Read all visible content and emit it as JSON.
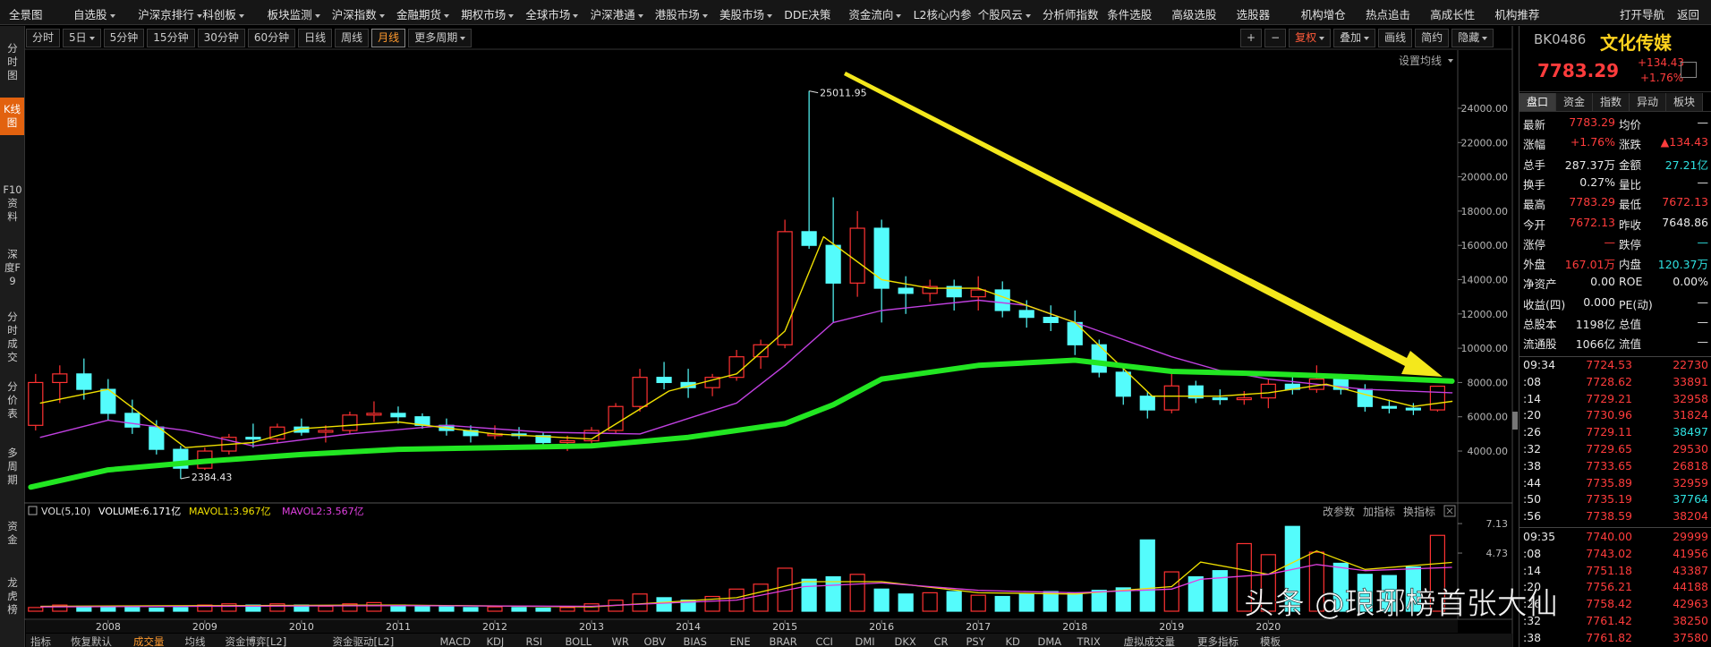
{
  "menu": [
    "全景图",
    "自选股",
    "沪深京排行",
    "科创板",
    "板块监测",
    "沪深指数",
    "金融期货",
    "期权市场",
    "全球市场",
    "沪深港通",
    "港股市场",
    "美股市场",
    "DDE决策",
    "资金流向",
    "L2核心内参",
    "个股风云",
    "分析师指数",
    "条件选股",
    "高级选股",
    "选股器",
    "机构增仓",
    "热点追击",
    "高成长性",
    "机构推荐"
  ],
  "menu_right": [
    "打开导航",
    "返回"
  ],
  "toolbar": [
    "分时",
    "5日",
    "5分钟",
    "15分钟",
    "30分钟",
    "60分钟",
    "日线",
    "周线",
    "月线",
    "更多周期"
  ],
  "toolbar_right": [
    "+",
    "−",
    "复权",
    "叠加",
    "画线",
    "简约",
    "隐藏"
  ],
  "sidebar": [
    "分时图",
    "K线图",
    "F10资料",
    "深度F9",
    "分时成交",
    "分价表",
    "多周期",
    "资金",
    "龙虎榜"
  ],
  "chart_data": [
    {
      "type": "candlestick",
      "x": [
        2007.25,
        2007.5,
        2007.75,
        2008.0,
        2008.25,
        2008.5,
        2008.75,
        2009.0,
        2009.25,
        2009.5,
        2009.75,
        2010.0,
        2010.25,
        2010.5,
        2010.75,
        2011.0,
        2011.25,
        2011.5,
        2011.75,
        2012.0,
        2012.25,
        2012.5,
        2012.75,
        2013.0,
        2013.25,
        2013.5,
        2013.75,
        2014.0,
        2014.25,
        2014.5,
        2014.75,
        2015.0,
        2015.25,
        2015.5,
        2015.75,
        2016.0,
        2016.25,
        2016.5,
        2016.75,
        2017.0,
        2017.25,
        2017.5,
        2017.75,
        2018.0,
        2018.25,
        2018.5,
        2018.75,
        2019.0,
        2019.25,
        2019.5,
        2019.75,
        2020.0,
        2020.25,
        2020.5,
        2020.75,
        2021.0,
        2021.25,
        2021.5,
        2021.75
      ],
      "open": [
        5500,
        8000,
        8500,
        7600,
        6200,
        5400,
        4100,
        3000,
        4000,
        4800,
        4700,
        5400,
        5100,
        5200,
        6100,
        6200,
        6000,
        5500,
        5200,
        4900,
        5000,
        4900,
        4500,
        4600,
        5200,
        6600,
        8300,
        8000,
        7700,
        8300,
        9500,
        10200,
        16800,
        16000,
        13800,
        17000,
        13500,
        13200,
        13600,
        13000,
        13400,
        12200,
        11800,
        11500,
        10200,
        8600,
        7200,
        6400,
        7800,
        7100,
        7000,
        7100,
        7900,
        7600,
        8200,
        7600,
        6600,
        6500,
        6400
      ],
      "high": [
        8500,
        9000,
        9400,
        8200,
        7000,
        5800,
        4300,
        4200,
        5000,
        5600,
        5600,
        5900,
        5500,
        6300,
        6900,
        6600,
        6200,
        5900,
        5500,
        5500,
        5400,
        5100,
        4900,
        5400,
        6800,
        8800,
        9200,
        8800,
        8500,
        9900,
        10500,
        17500,
        25011.95,
        18800,
        18000,
        17500,
        14200,
        14000,
        14000,
        14200,
        13900,
        12800,
        12500,
        12200,
        10500,
        8900,
        7500,
        8700,
        8100,
        7600,
        7500,
        8200,
        8500,
        9000,
        8500,
        7900,
        7000,
        6800,
        7783.29
      ],
      "low": [
        5200,
        6800,
        7000,
        5800,
        5000,
        3800,
        2384.43,
        2900,
        3800,
        4200,
        4500,
        4900,
        4500,
        5000,
        5700,
        5600,
        5300,
        4900,
        4500,
        4700,
        4700,
        4300,
        4000,
        4400,
        5000,
        6300,
        7600,
        7100,
        7200,
        8100,
        8800,
        10000,
        15800,
        11500,
        13000,
        11500,
        12000,
        12700,
        12200,
        12200,
        11800,
        11200,
        11000,
        9600,
        8300,
        6700,
        5900,
        6200,
        6800,
        6700,
        6700,
        6500,
        7300,
        7400,
        7300,
        6300,
        6200,
        6100,
        6300
      ],
      "close": [
        8000,
        8500,
        7600,
        6200,
        5400,
        4100,
        3000,
        4000,
        4800,
        4700,
        5400,
        5100,
        5200,
        6100,
        6200,
        6000,
        5500,
        5200,
        4900,
        5000,
        4900,
        4500,
        4600,
        5200,
        6600,
        8300,
        8000,
        7700,
        8300,
        9500,
        10200,
        16800,
        16000,
        13800,
        17000,
        13500,
        13200,
        13600,
        13000,
        13400,
        12200,
        11800,
        11500,
        10200,
        8600,
        7200,
        6400,
        7800,
        7100,
        7000,
        7100,
        7900,
        7600,
        8200,
        7600,
        6600,
        6500,
        6400,
        7783.29
      ],
      "up_color": "#ff3232",
      "down_color": "#54fcfc",
      "xlim": [
        2007.15,
        2021.95
      ],
      "xticks": [
        2008,
        2009,
        2010,
        2011,
        2012,
        2013,
        2014,
        2015,
        2016,
        2017,
        2018,
        2019,
        2020
      ],
      "ylim": [
        1000,
        27000
      ],
      "yticks": [
        {
          "value": 4000,
          "label": "4000.00"
        },
        {
          "value": 6000,
          "label": "6000.00"
        },
        {
          "value": 8000,
          "label": "8000.00"
        },
        {
          "value": 10000,
          "label": "10000.00"
        },
        {
          "value": 12000,
          "label": "12000.00"
        },
        {
          "value": 14000,
          "label": "14000.00"
        },
        {
          "value": 16000,
          "label": "16000.00"
        },
        {
          "value": 18000,
          "label": "18000.00"
        },
        {
          "value": 20000,
          "label": "20000.00"
        },
        {
          "value": 22000,
          "label": "22000.00"
        },
        {
          "value": 24000,
          "label": "24000.00"
        }
      ],
      "ma_setting": "设置均线",
      "ma_lines": [
        {
          "color": "#c040e0",
          "width": 1.4,
          "x": [
            2007.3,
            2008,
            2008.8,
            2009.5,
            2010.5,
            2011.5,
            2012.5,
            2013.5,
            2014.5,
            2015,
            2015.5,
            2016,
            2016.5,
            2017,
            2017.5,
            2018,
            2018.5,
            2019,
            2019.5,
            2020,
            2021,
            2021.9
          ],
          "values": [
            4800,
            5800,
            5200,
            4300,
            5000,
            5500,
            5100,
            5000,
            6800,
            9000,
            11500,
            12200,
            12500,
            12800,
            12500,
            11500,
            10500,
            9500,
            8700,
            8200,
            7600,
            7400
          ]
        },
        {
          "color": "#f0e000",
          "width": 1.4,
          "x": [
            2007.3,
            2008,
            2008.8,
            2009.5,
            2010,
            2011,
            2012,
            2013,
            2013.8,
            2014.5,
            2015,
            2015.4,
            2016,
            2016.5,
            2017,
            2018,
            2018.8,
            2019.5,
            2020,
            2020.6,
            2021,
            2021.5,
            2021.9
          ],
          "values": [
            6800,
            7600,
            4200,
            4500,
            5300,
            5700,
            5000,
            4700,
            7500,
            8500,
            11000,
            16500,
            14000,
            13500,
            13500,
            11500,
            7200,
            7200,
            7400,
            7900,
            7300,
            6600,
            6900
          ]
        },
        {
          "color": "#22e622",
          "width": 6,
          "x": [
            2007.2,
            2008,
            2009,
            2010,
            2011,
            2012,
            2013,
            2014,
            2015,
            2015.5,
            2016,
            2017,
            2018,
            2019,
            2020,
            2021,
            2021.9
          ],
          "values": [
            1900,
            2900,
            3400,
            3800,
            4100,
            4200,
            4300,
            4800,
            5600,
            6700,
            8200,
            9000,
            9300,
            8650,
            8500,
            8300,
            8080
          ]
        }
      ]
    },
    {
      "type": "bar",
      "title": "VOL(5,10)",
      "legend": [
        "VOLUME:6.171亿",
        "MAVOL1:3.967亿",
        "MAVOL2:3.567亿"
      ],
      "tools": [
        "改参数",
        "加指标",
        "换指标"
      ],
      "x": [
        2007.25,
        2007.5,
        2007.75,
        2008.0,
        2008.25,
        2008.5,
        2008.75,
        2009.0,
        2009.25,
        2009.5,
        2009.75,
        2010.0,
        2010.25,
        2010.5,
        2010.75,
        2011.0,
        2011.25,
        2011.5,
        2011.75,
        2012.0,
        2012.25,
        2012.5,
        2012.75,
        2013.0,
        2013.25,
        2013.5,
        2013.75,
        2014.0,
        2014.25,
        2014.5,
        2014.75,
        2015.0,
        2015.25,
        2015.5,
        2015.75,
        2016.0,
        2016.25,
        2016.5,
        2016.75,
        2017.0,
        2017.25,
        2017.5,
        2017.75,
        2018.0,
        2018.25,
        2018.5,
        2018.75,
        2019.0,
        2019.25,
        2019.5,
        2019.75,
        2020.0,
        2020.25,
        2020.5,
        2020.75,
        2021.0,
        2021.25,
        2021.5,
        2021.75
      ],
      "values": [
        0.3,
        0.5,
        0.4,
        0.3,
        0.3,
        0.25,
        0.3,
        0.5,
        0.6,
        0.5,
        0.6,
        0.5,
        0.4,
        0.6,
        0.7,
        0.5,
        0.4,
        0.35,
        0.3,
        0.35,
        0.3,
        0.25,
        0.3,
        0.6,
        0.9,
        1.4,
        1.1,
        0.9,
        1.2,
        1.8,
        2.2,
        3.5,
        2.6,
        2.8,
        3.0,
        1.8,
        1.4,
        1.5,
        1.6,
        1.3,
        1.2,
        1.4,
        1.6,
        1.5,
        1.7,
        1.9,
        5.8,
        3.2,
        2.8,
        3.3,
        5.5,
        4.6,
        6.9,
        4.8,
        3.9,
        3.0,
        2.9,
        3.6,
        6.171
      ],
      "ylim": [
        0,
        7.5
      ],
      "yticks": [
        4.73,
        7.13
      ],
      "lines": [
        {
          "color": "#f0e000",
          "x": [
            2007.3,
            2009,
            2011,
            2013,
            2014.5,
            2015.2,
            2016,
            2017,
            2018,
            2019,
            2019.3,
            2020,
            2020.5,
            2021,
            2021.9
          ],
          "values": [
            0.4,
            0.45,
            0.5,
            0.35,
            1.1,
            2.4,
            2.4,
            1.5,
            1.4,
            2.0,
            4.0,
            3.0,
            4.9,
            3.4,
            3.967
          ]
        },
        {
          "color": "#e040e0",
          "x": [
            2007.3,
            2009,
            2011,
            2013,
            2014.5,
            2015.2,
            2016,
            2017,
            2018,
            2019,
            2019.3,
            2020,
            2020.5,
            2021,
            2021.9
          ],
          "values": [
            0.35,
            0.4,
            0.45,
            0.4,
            0.9,
            2.0,
            2.3,
            1.7,
            1.5,
            1.8,
            2.6,
            3.0,
            3.8,
            3.3,
            3.567
          ]
        }
      ]
    }
  ],
  "bottom_tabs": [
    "指标",
    "恢复默认",
    "成交量",
    "均线",
    "资金博弈[L2]",
    "资金驱动[L2]",
    "MACD",
    "KDJ",
    "RSI",
    "BOLL",
    "WR",
    "OBV",
    "BIAS",
    "ENE",
    "BRAR",
    "CCI",
    "DMI",
    "DKX",
    "CR",
    "PSY",
    "KD",
    "DMA",
    "TRIX",
    "虚拟成交量",
    "更多指标",
    "模板"
  ],
  "watermark": "头条 @琅琊榜首张大仙",
  "panel": {
    "code": "BK0486",
    "name": "文化传媒",
    "price": "7783.29",
    "change": "+134.43",
    "pct": "+1.76%",
    "tabs": [
      "盘口",
      "资金",
      "指数",
      "异动",
      "板块"
    ],
    "quote": [
      [
        "最新",
        "7783.29",
        "均价",
        "—"
      ],
      [
        "涨幅",
        "+1.76%",
        "涨跌",
        "▲134.43"
      ],
      [
        "总手",
        "287.37万",
        "金额",
        "27.21亿"
      ],
      [
        "换手",
        "0.27%",
        "量比",
        "—"
      ],
      [
        "最高",
        "7783.29",
        "最低",
        "7672.13"
      ],
      [
        "今开",
        "7672.13",
        "昨收",
        "7648.86"
      ],
      [
        "涨停",
        "—",
        "跌停",
        "—"
      ],
      [
        "外盘",
        "167.01万",
        "内盘",
        "120.37万"
      ],
      [
        "净资产",
        "0.00",
        "ROE",
        "0.00%"
      ],
      [
        "收益(四)",
        "0.000",
        "PE(动)",
        "—"
      ],
      [
        "总股本",
        "1198亿",
        "总值",
        "—"
      ],
      [
        "流通股",
        "1066亿",
        "流值",
        "—"
      ]
    ],
    "trades": [
      [
        "09:34",
        "7724.53",
        "22730"
      ],
      [
        ":08",
        "7728.62",
        "33891"
      ],
      [
        ":14",
        "7729.21",
        "32958"
      ],
      [
        ":20",
        "7730.96",
        "31824"
      ],
      [
        ":26",
        "7729.11",
        "38497"
      ],
      [
        ":32",
        "7729.65",
        "29530"
      ],
      [
        ":38",
        "7733.65",
        "26818"
      ],
      [
        ":44",
        "7735.89",
        "32959"
      ],
      [
        ":50",
        "7735.19",
        "37764"
      ],
      [
        ":56",
        "7738.59",
        "38204"
      ],
      [
        "09:35",
        "7740.00",
        "29999"
      ],
      [
        ":08",
        "7743.02",
        "41956"
      ],
      [
        ":14",
        "7751.18",
        "43387"
      ],
      [
        ":20",
        "7756.21",
        "44188"
      ],
      [
        ":26",
        "7758.42",
        "42963"
      ],
      [
        ":32",
        "7761.42",
        "38250"
      ],
      [
        ":38",
        "7761.82",
        "37580"
      ]
    ]
  }
}
